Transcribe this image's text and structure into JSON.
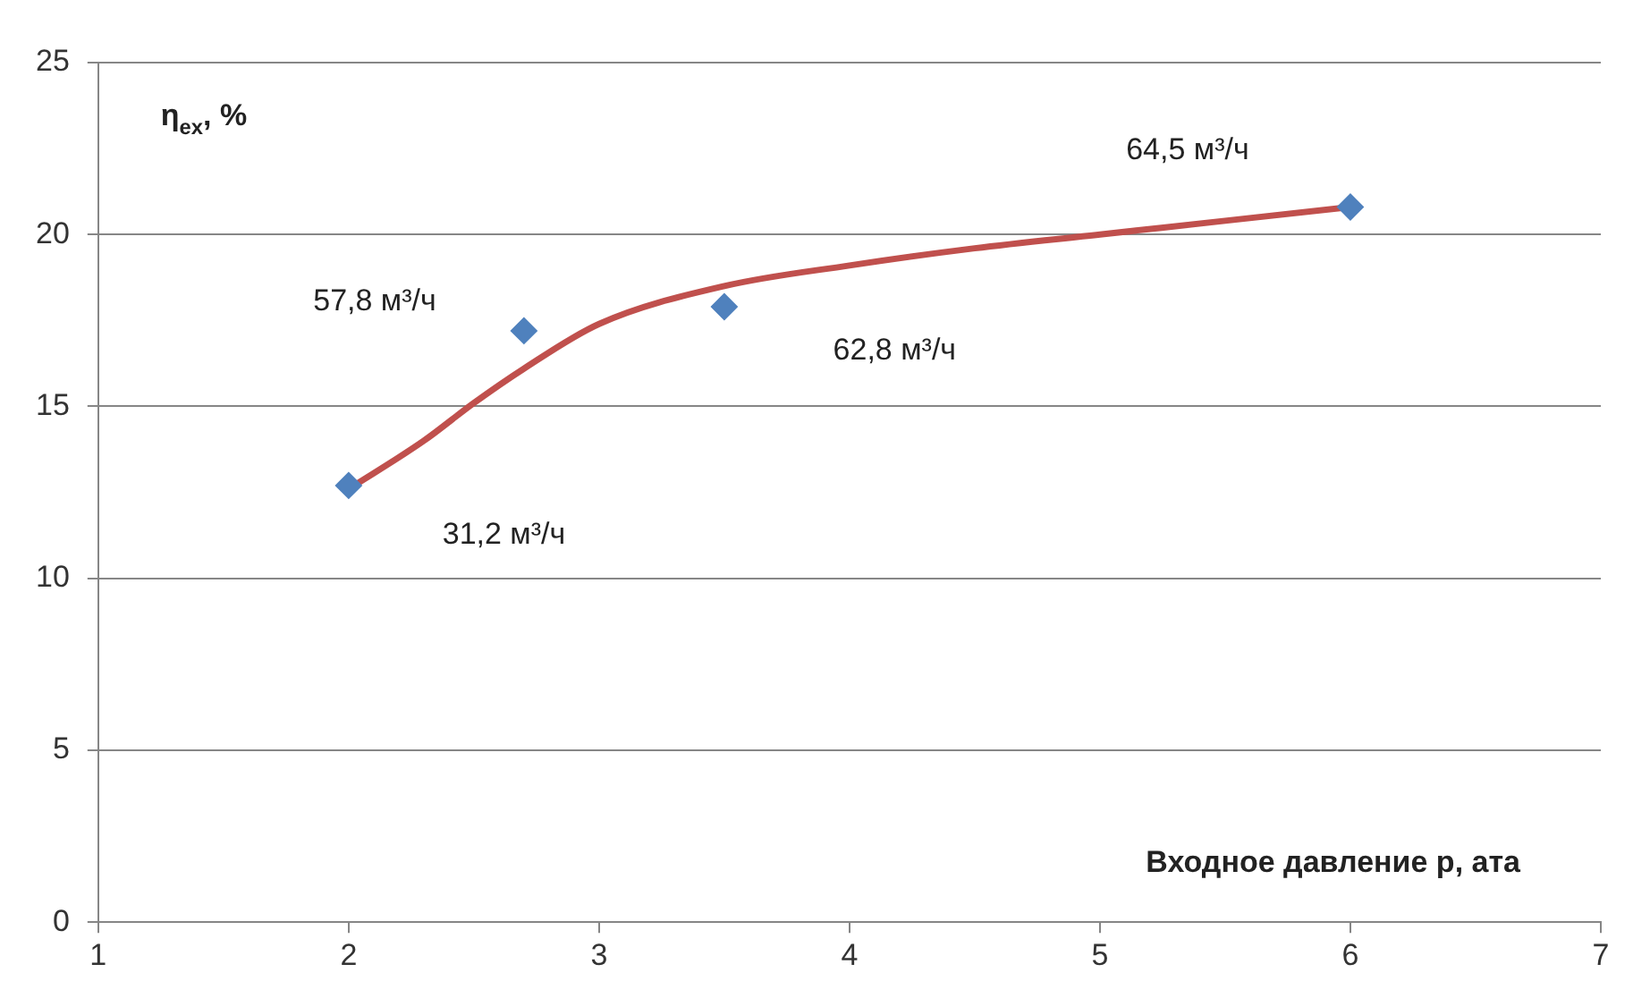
{
  "chart_data": {
    "type": "scatter",
    "xlabel": "Входное давление р, ата",
    "ylabel": "η$_{ex}$, %",
    "xlim": [
      1,
      7
    ],
    "xticks": [
      1,
      2,
      3,
      4,
      5,
      6,
      7
    ],
    "ylim": [
      0,
      25
    ],
    "yticks": [
      0,
      5,
      10,
      15,
      20,
      25
    ],
    "grid": "y",
    "legend": false,
    "series": [
      {
        "type": "line",
        "marker": "none",
        "color": "#c0504d",
        "x": [
          2,
          2.3,
          2.5,
          2.7,
          3,
          3.5,
          4,
          4.5,
          5,
          5.5,
          6
        ],
        "values": [
          12.6,
          14,
          15.1,
          16.1,
          17.4,
          18.5,
          19.1,
          19.6,
          20,
          20.4,
          20.8
        ]
      },
      {
        "type": "scatter",
        "marker": "diamond",
        "color": "#4f81bd",
        "x": [
          2,
          2.7,
          3.5,
          6
        ],
        "values": [
          12.7,
          17.2,
          17.9,
          20.8
        ]
      }
    ],
    "annotations": [
      "31,2 м³/ч",
      "57,8 м³/ч",
      "62,8 м³/ч",
      "64,5 м³/ч"
    ]
  }
}
